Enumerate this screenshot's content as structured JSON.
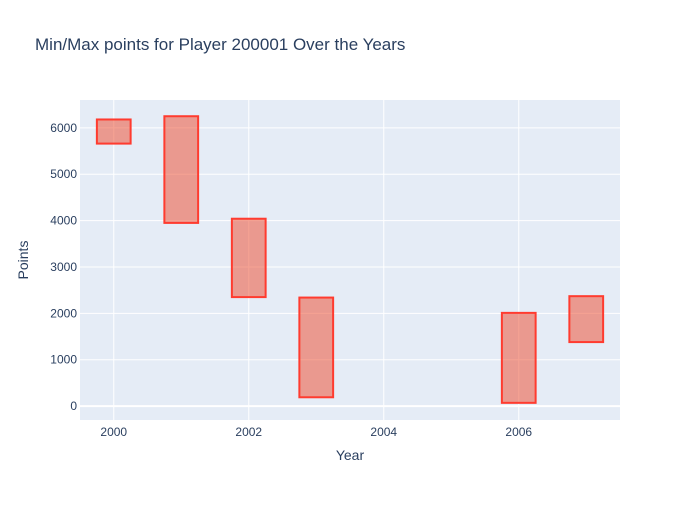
{
  "chart_data": {
    "type": "bar",
    "title": "Min/Max points for Player 200001 Over the Years",
    "xlabel": "Year",
    "ylabel": "Points",
    "xlim": [
      1999.5,
      2007.5
    ],
    "ylim": [
      -300,
      6600
    ],
    "x_ticks": [
      2000,
      2002,
      2004,
      2006
    ],
    "y_ticks": [
      0,
      1000,
      2000,
      3000,
      4000,
      5000,
      6000
    ],
    "grid": true,
    "bar_width_years": 0.5,
    "series": [
      {
        "values": [
          {
            "year": 2000,
            "min": 5660,
            "max": 6180
          },
          {
            "year": 2001,
            "min": 3950,
            "max": 6250
          },
          {
            "year": 2002,
            "min": 2350,
            "max": 4040
          },
          {
            "year": 2003,
            "min": 190,
            "max": 2340
          },
          {
            "year": 2006,
            "min": 70,
            "max": 2010
          },
          {
            "year": 2007,
            "min": 1380,
            "max": 2370
          }
        ]
      }
    ],
    "colors": {
      "plot_bg": "#e5ecf6",
      "grid": "#ffffff",
      "bar_fill": "rgba(239,85,59,0.55)",
      "bar_line": "#ff3b2f",
      "text": "#2a3f5f"
    }
  }
}
